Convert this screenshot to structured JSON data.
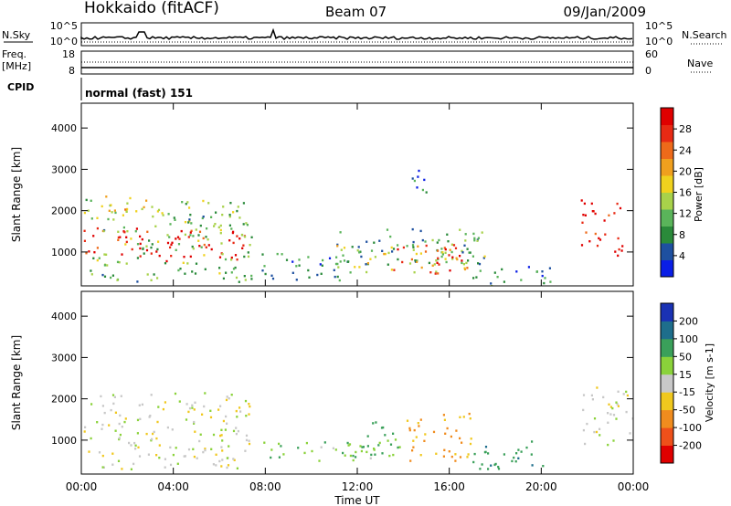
{
  "header": {
    "station": "Hokkaido (fitACF)",
    "beam": "Beam 07",
    "date": "09/Jan/2009"
  },
  "top_panel": {
    "nsky_label": "N.Sky",
    "nsearch_label": "N.Search",
    "noise_ticks_left": [
      "10^5",
      "10^0"
    ],
    "noise_ticks_right": [
      "10^5",
      "10^0"
    ],
    "freq_label": "Freq.",
    "freq_unit": "[MHz]",
    "freq_ticks": [
      "18",
      "8"
    ],
    "nave_label": "Nave",
    "nave_ticks": [
      "60",
      "0"
    ],
    "cpid_label": "CPID",
    "cpid_text": "normal (fast) 151"
  },
  "chart_data": [
    {
      "type": "heatmap",
      "name": "power-panel",
      "xlabel": "",
      "ylabel": "Slant Range [km]",
      "x_ticks": [
        "00:00",
        "04:00",
        "08:00",
        "12:00",
        "16:00",
        "20:00",
        "00:00"
      ],
      "y_ticks": [
        1000,
        2000,
        3000,
        4000
      ],
      "xlim_hours": [
        0,
        24
      ],
      "ylim_km": [
        180,
        4600
      ],
      "colorbar": {
        "label": "Power [dB]",
        "ticks": [
          4,
          8,
          12,
          16,
          20,
          24,
          28
        ],
        "colors": [
          "#0a1ee6",
          "#1e50a0",
          "#2a8a3a",
          "#5ab45a",
          "#a8d24a",
          "#f0d21e",
          "#f0a01e",
          "#ee6a1a",
          "#e82a14",
          "#e00000"
        ]
      },
      "regions": [
        {
          "t0": 0.1,
          "t1": 7.4,
          "r0": 800,
          "r1": 1600,
          "value": 26
        },
        {
          "t0": 0.1,
          "t1": 7.4,
          "r0": 300,
          "r1": 2300,
          "value": 12
        },
        {
          "t0": 1.0,
          "t1": 3.0,
          "r0": 2000,
          "r1": 2400,
          "value": 18
        },
        {
          "t0": 7.8,
          "t1": 11.5,
          "r0": 300,
          "r1": 1000,
          "value": 8
        },
        {
          "t0": 11.0,
          "t1": 17.6,
          "r0": 700,
          "r1": 1600,
          "value": 10
        },
        {
          "t0": 11.0,
          "t1": 17.6,
          "r0": 500,
          "r1": 1200,
          "value": 14
        },
        {
          "t0": 13.5,
          "t1": 16.8,
          "r0": 500,
          "r1": 1200,
          "value": 24
        },
        {
          "t0": 14.0,
          "t1": 15.0,
          "r0": 2400,
          "r1": 3100,
          "value": 6
        },
        {
          "t0": 17.0,
          "t1": 20.5,
          "r0": 200,
          "r1": 700,
          "value": 8
        },
        {
          "t0": 21.7,
          "t1": 23.5,
          "r0": 900,
          "r1": 2300,
          "value": 26
        }
      ]
    },
    {
      "type": "heatmap",
      "name": "velocity-panel",
      "xlabel": "Time UT",
      "ylabel": "Slant Range [km]",
      "x_ticks": [
        "00:00",
        "04:00",
        "08:00",
        "12:00",
        "16:00",
        "20:00",
        "00:00"
      ],
      "y_ticks": [
        1000,
        2000,
        3000,
        4000
      ],
      "xlim_hours": [
        0,
        24
      ],
      "ylim_km": [
        180,
        4600
      ],
      "colorbar": {
        "label": "Velocity [m s-1]",
        "ticks": [
          200,
          100,
          50,
          15,
          -15,
          -50,
          -100,
          -200
        ],
        "colors": [
          "#1a32b4",
          "#1e6e8c",
          "#3aa05a",
          "#8ad23a",
          "#c8c8c8",
          "#f0c81e",
          "#f08c1e",
          "#ee501a",
          "#e00000"
        ]
      },
      "regions": [
        {
          "t0": 0.1,
          "t1": 7.4,
          "r0": 300,
          "r1": 2200,
          "value": 0
        },
        {
          "t0": 7.8,
          "t1": 13.0,
          "r0": 500,
          "r1": 1000,
          "value": 40
        },
        {
          "t0": 11.5,
          "t1": 14.0,
          "r0": 600,
          "r1": 1500,
          "value": 60
        },
        {
          "t0": 14.0,
          "t1": 17.0,
          "r0": 500,
          "r1": 1700,
          "value": -60
        },
        {
          "t0": 17.0,
          "t1": 20.5,
          "r0": 300,
          "r1": 1000,
          "value": 80
        },
        {
          "t0": 21.7,
          "t1": 24.0,
          "r0": 900,
          "r1": 2300,
          "value": 0
        }
      ]
    }
  ]
}
